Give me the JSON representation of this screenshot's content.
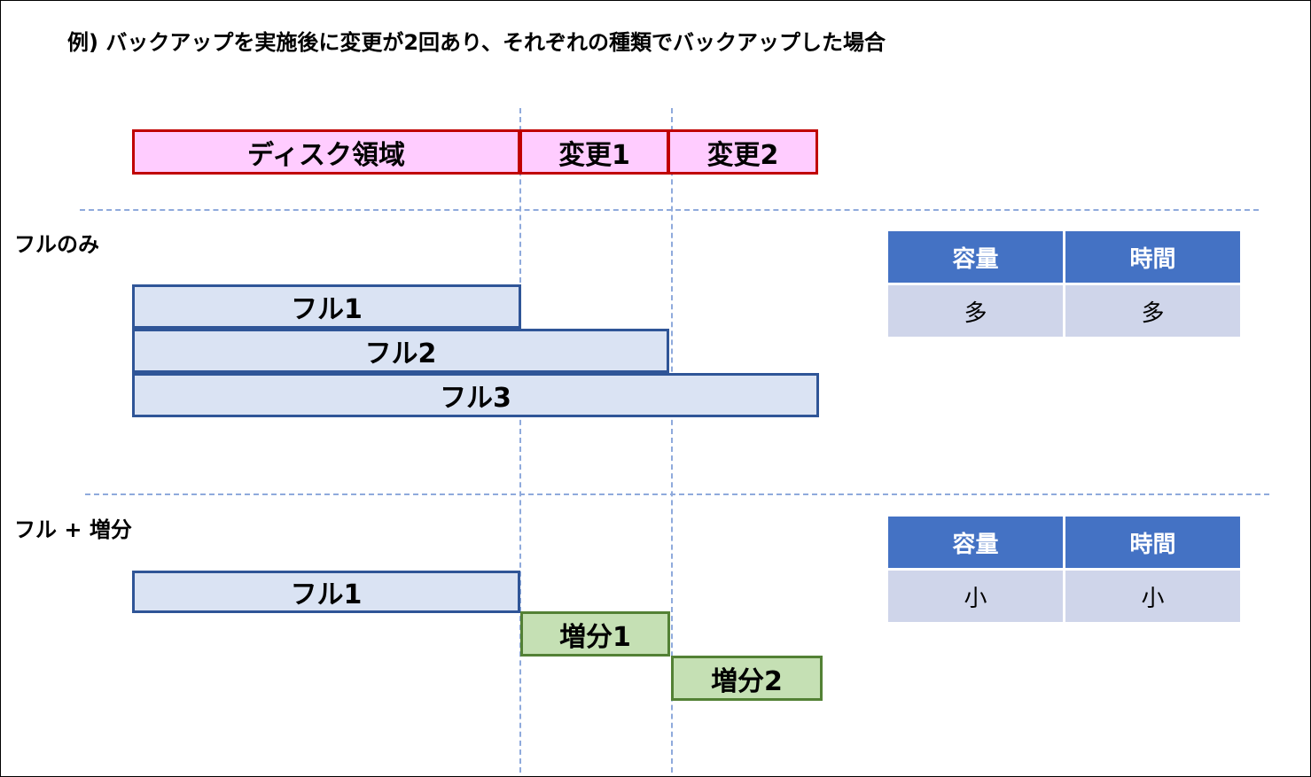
{
  "title": "例) バックアップを実施後に変更が2回あり、それぞれの種類でバックアップした場合",
  "top_row": {
    "disk": "ディスク領域",
    "change1": "変更1",
    "change2": "変更2"
  },
  "full_only": {
    "label": "フルのみ",
    "bars": [
      "フル1",
      "フル2",
      "フル3"
    ],
    "table": {
      "headers": [
        "容量",
        "時間"
      ],
      "values": [
        "多",
        "多"
      ]
    }
  },
  "full_incremental": {
    "label": "フル + 増分",
    "bars": [
      "フル1",
      "増分1",
      "増分2"
    ],
    "table": {
      "headers": [
        "容量",
        "時間"
      ],
      "values": [
        "小",
        "小"
      ]
    }
  },
  "colors": {
    "disk_fill": "#ffccff",
    "disk_border": "#c00000",
    "full_fill": "#dae3f3",
    "full_border": "#2f5597",
    "incremental_fill": "#c5e0b4",
    "incremental_border": "#538135",
    "table_header": "#4472c4",
    "table_cell": "#cfd5ea",
    "guide_line": "#8faadc"
  }
}
